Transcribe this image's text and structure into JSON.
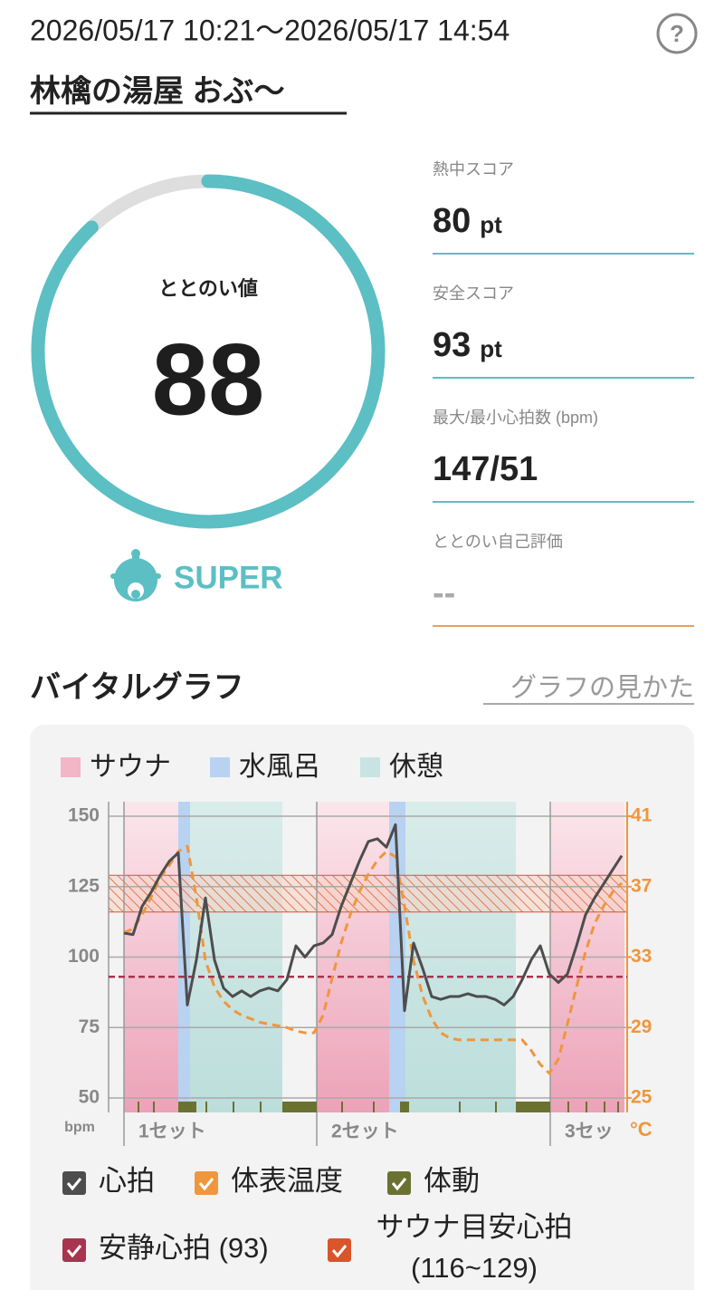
{
  "header": {
    "datetime": "2026/05/17 10:21～2026/05/17 14:54",
    "help_icon": "?",
    "place": "林檎の湯屋 おぶ～"
  },
  "score": {
    "label": "ととのい値",
    "value": 88,
    "range": [
      0,
      100
    ],
    "rank": "SUPER",
    "color": "#5bbfc4"
  },
  "stats": [
    {
      "label": "熱中スコア",
      "value": 80,
      "unit": "pt",
      "line_color": "#5bbfc4"
    },
    {
      "label": "安全スコア",
      "value": 93,
      "unit": "pt",
      "line_color": "#5bbfc4"
    },
    {
      "label": "最大/最小心拍数 (bpm)",
      "value": "147/51",
      "line_color": "#5bbfc4"
    },
    {
      "label": "ととのい自己評価",
      "value": "--",
      "line_color": "#e8a25a"
    }
  ],
  "section": {
    "title": "バイタルグラフ",
    "link": "グラフの見かた"
  },
  "chart_data": {
    "type": "line",
    "phase_legend": [
      {
        "name": "サウナ",
        "color": "#f2b6c8"
      },
      {
        "name": "水風呂",
        "color": "#b8d2f2"
      },
      {
        "name": "休憩",
        "color": "#c8e4e2"
      }
    ],
    "phases": [
      {
        "phase": 0,
        "start": 0,
        "end": 6
      },
      {
        "phase": 1,
        "start": 6,
        "end": 7.3
      },
      {
        "phase": 2,
        "start": 7.3,
        "end": 17.5
      },
      {
        "phase": 0,
        "start": 21.3,
        "end": 29.3
      },
      {
        "phase": 1,
        "start": 29.3,
        "end": 31.1
      },
      {
        "phase": 2,
        "start": 31.1,
        "end": 43.3
      },
      {
        "phase": 0,
        "start": 47.1,
        "end": 55.3
      }
    ],
    "sets": [
      {
        "label": "1セット",
        "at": 0
      },
      {
        "label": "2セット",
        "at": 21.3
      },
      {
        "label": "3セッ",
        "at": 47.1
      }
    ],
    "ylim": [
      50,
      150
    ],
    "yticks": [
      50,
      75,
      100,
      125,
      150
    ],
    "y_unit": "bpm",
    "y2lim": [
      25,
      41
    ],
    "y2ticks": [
      25,
      29,
      33,
      37,
      41
    ],
    "y2_unit": "°C",
    "grid": true,
    "series": [
      {
        "name": "心拍",
        "color": "#4d4d4d",
        "axis": "y",
        "values": [
          108.5,
          108,
          118,
          123,
          129,
          134,
          137,
          83,
          99,
          121,
          99,
          89,
          86,
          88,
          86,
          88,
          89,
          88,
          92,
          104,
          100,
          104,
          105,
          108,
          118,
          126,
          134,
          141,
          142,
          139,
          147,
          81,
          105,
          96,
          86,
          85,
          86,
          86,
          87,
          86,
          86,
          85,
          83,
          86,
          92,
          99,
          104,
          94,
          91,
          94,
          104,
          115,
          121,
          126,
          131,
          136
        ]
      },
      {
        "name": "体表温度",
        "color": "#f0963c",
        "axis": "y2",
        "values": [
          34.4,
          34.6,
          35.4,
          36.4,
          37.5,
          38.2,
          39.0,
          39.3,
          36.4,
          32.8,
          31.3,
          30.5,
          30.0,
          29.7,
          29.5,
          29.3,
          29.2,
          29.1,
          29.0,
          28.8,
          28.7,
          28.7,
          29.7,
          31.8,
          33.8,
          35.4,
          36.7,
          37.7,
          38.5,
          39.0,
          38.7,
          35.9,
          32.8,
          30.8,
          29.5,
          28.7,
          28.4,
          28.3,
          28.3,
          28.3,
          28.3,
          28.3,
          28.3,
          28.3,
          28.3,
          27.7,
          26.9,
          26.4,
          27.2,
          29.2,
          31.3,
          33.3,
          34.9,
          35.9,
          36.7,
          37.2
        ]
      }
    ],
    "activity": {
      "name": "体動",
      "color": "#6b7230",
      "spans": [
        [
          1.5,
          1.7
        ],
        [
          3.2,
          3.4
        ],
        [
          6,
          8
        ],
        [
          9,
          9.2
        ],
        [
          12,
          12.2
        ],
        [
          15,
          15.2
        ],
        [
          17.5,
          21.3
        ],
        [
          24,
          24.2
        ],
        [
          27.5,
          27.7
        ],
        [
          30.5,
          31.5
        ],
        [
          37,
          37.2
        ],
        [
          41,
          41.2
        ],
        [
          43.3,
          47.1
        ],
        [
          49,
          49.2
        ],
        [
          51,
          51.2
        ],
        [
          53,
          53.2
        ],
        [
          54.5,
          54.7
        ]
      ]
    },
    "resting_hr": {
      "label": "安静心拍 (93)",
      "value": 93,
      "color": "#a8344f"
    },
    "target_hr": {
      "label": [
        "サウナ目安心拍",
        "(116~129)"
      ],
      "range": [
        116,
        129
      ],
      "color": "#d9552b"
    }
  }
}
